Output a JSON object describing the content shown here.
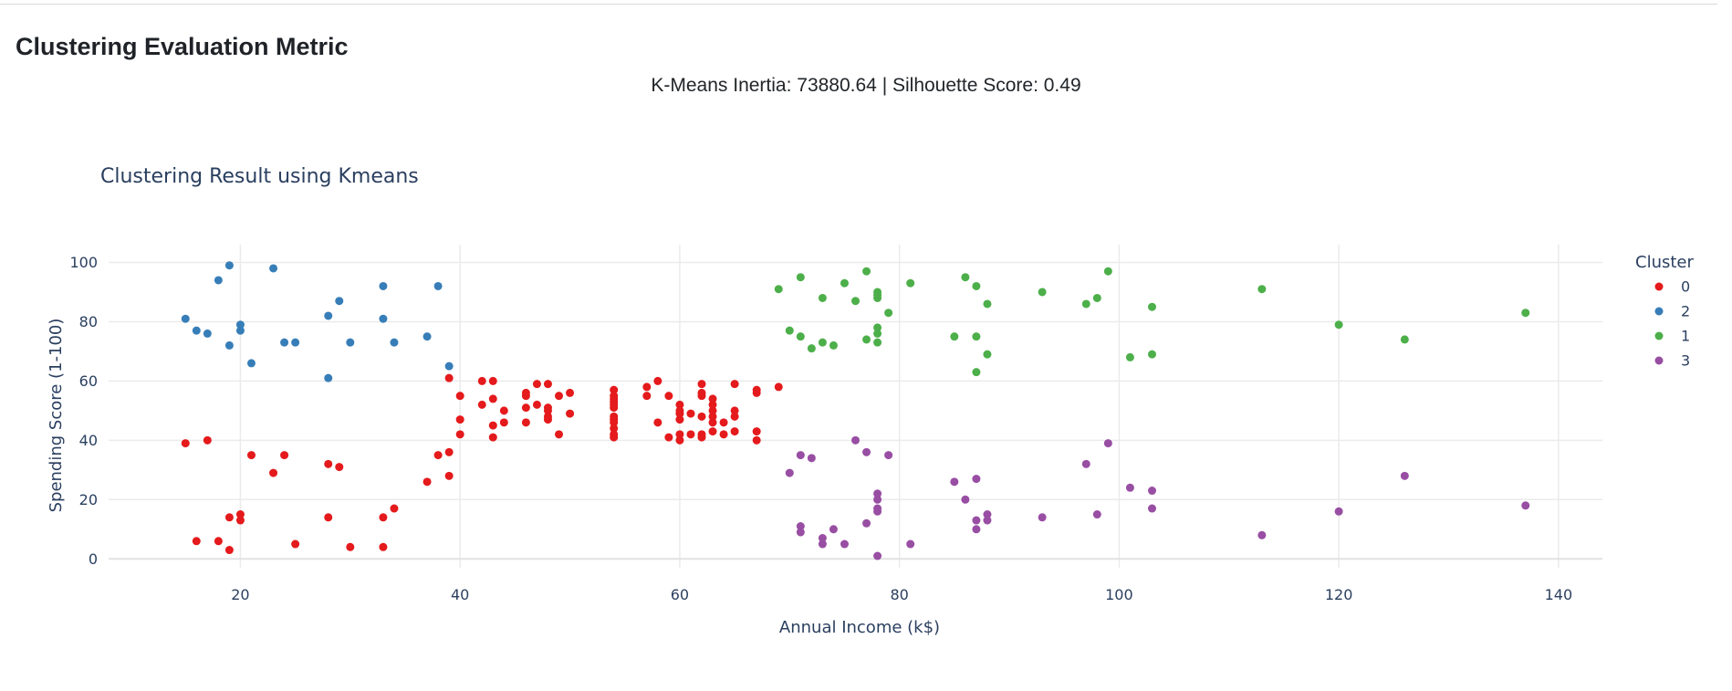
{
  "section": {
    "title": "Clustering Evaluation Metric",
    "metrics_text": "K-Means Inertia: 73880.64 | Silhouette Score: 0.49"
  },
  "chart_data": {
    "type": "scatter",
    "title": "Clustering Result using Kmeans",
    "xlabel": "Annual Income (k$)",
    "ylabel": "Spending Score (1-100)",
    "xlim": [
      8,
      144
    ],
    "ylim": [
      -3,
      106
    ],
    "x_ticks": [
      20,
      40,
      60,
      80,
      100,
      120,
      140
    ],
    "y_ticks": [
      0,
      20,
      40,
      60,
      80,
      100
    ],
    "grid": true,
    "legend": {
      "title": "Cluster",
      "position": "right"
    },
    "series": [
      {
        "name": "0",
        "color": "#e41a1c",
        "points": [
          [
            15,
            39
          ],
          [
            16,
            6
          ],
          [
            17,
            40
          ],
          [
            18,
            6
          ],
          [
            19,
            3
          ],
          [
            19,
            14
          ],
          [
            20,
            15
          ],
          [
            20,
            13
          ],
          [
            21,
            35
          ],
          [
            23,
            29
          ],
          [
            24,
            35
          ],
          [
            25,
            5
          ],
          [
            28,
            14
          ],
          [
            28,
            32
          ],
          [
            29,
            31
          ],
          [
            30,
            4
          ],
          [
            33,
            4
          ],
          [
            33,
            14
          ],
          [
            34,
            17
          ],
          [
            37,
            26
          ],
          [
            38,
            35
          ],
          [
            39,
            36
          ],
          [
            39,
            28
          ],
          [
            39,
            61
          ],
          [
            40,
            55
          ],
          [
            40,
            47
          ],
          [
            40,
            42
          ],
          [
            42,
            52
          ],
          [
            42,
            60
          ],
          [
            43,
            60
          ],
          [
            43,
            54
          ],
          [
            43,
            45
          ],
          [
            43,
            41
          ],
          [
            44,
            50
          ],
          [
            44,
            46
          ],
          [
            46,
            51
          ],
          [
            46,
            46
          ],
          [
            46,
            56
          ],
          [
            46,
            55
          ],
          [
            47,
            52
          ],
          [
            47,
            59
          ],
          [
            48,
            51
          ],
          [
            48,
            59
          ],
          [
            48,
            50
          ],
          [
            48,
            48
          ],
          [
            48,
            47
          ],
          [
            49,
            55
          ],
          [
            49,
            42
          ],
          [
            50,
            49
          ],
          [
            50,
            56
          ],
          [
            54,
            47
          ],
          [
            54,
            54
          ],
          [
            54,
            53
          ],
          [
            54,
            48
          ],
          [
            54,
            52
          ],
          [
            54,
            42
          ],
          [
            54,
            51
          ],
          [
            54,
            55
          ],
          [
            54,
            41
          ],
          [
            54,
            44
          ],
          [
            54,
            57
          ],
          [
            54,
            46
          ],
          [
            57,
            58
          ],
          [
            57,
            55
          ],
          [
            58,
            60
          ],
          [
            58,
            46
          ],
          [
            59,
            55
          ],
          [
            59,
            41
          ],
          [
            60,
            49
          ],
          [
            60,
            40
          ],
          [
            60,
            42
          ],
          [
            60,
            52
          ],
          [
            60,
            47
          ],
          [
            60,
            50
          ],
          [
            61,
            42
          ],
          [
            61,
            49
          ],
          [
            62,
            41
          ],
          [
            62,
            48
          ],
          [
            62,
            59
          ],
          [
            62,
            55
          ],
          [
            62,
            56
          ],
          [
            62,
            42
          ],
          [
            63,
            50
          ],
          [
            63,
            46
          ],
          [
            63,
            43
          ],
          [
            63,
            48
          ],
          [
            63,
            52
          ],
          [
            63,
            54
          ],
          [
            64,
            42
          ],
          [
            64,
            46
          ],
          [
            65,
            48
          ],
          [
            65,
            50
          ],
          [
            65,
            43
          ],
          [
            65,
            59
          ],
          [
            67,
            43
          ],
          [
            67,
            57
          ],
          [
            67,
            56
          ],
          [
            67,
            40
          ],
          [
            69,
            58
          ]
        ]
      },
      {
        "name": "2",
        "color": "#377eb8",
        "points": [
          [
            15,
            81
          ],
          [
            16,
            77
          ],
          [
            17,
            76
          ],
          [
            18,
            94
          ],
          [
            19,
            72
          ],
          [
            19,
            99
          ],
          [
            20,
            77
          ],
          [
            20,
            79
          ],
          [
            21,
            66
          ],
          [
            23,
            98
          ],
          [
            24,
            73
          ],
          [
            25,
            73
          ],
          [
            28,
            82
          ],
          [
            28,
            61
          ],
          [
            29,
            87
          ],
          [
            30,
            73
          ],
          [
            33,
            92
          ],
          [
            33,
            81
          ],
          [
            34,
            73
          ],
          [
            37,
            75
          ],
          [
            38,
            92
          ],
          [
            39,
            65
          ]
        ]
      },
      {
        "name": "1",
        "color": "#4daf4a",
        "points": [
          [
            69,
            91
          ],
          [
            70,
            77
          ],
          [
            71,
            95
          ],
          [
            71,
            75
          ],
          [
            72,
            71
          ],
          [
            73,
            88
          ],
          [
            73,
            73
          ],
          [
            74,
            72
          ],
          [
            75,
            93
          ],
          [
            76,
            87
          ],
          [
            77,
            97
          ],
          [
            77,
            74
          ],
          [
            78,
            90
          ],
          [
            78,
            88
          ],
          [
            78,
            89
          ],
          [
            78,
            78
          ],
          [
            78,
            73
          ],
          [
            78,
            76
          ],
          [
            79,
            83
          ],
          [
            81,
            93
          ],
          [
            85,
            75
          ],
          [
            86,
            95
          ],
          [
            87,
            63
          ],
          [
            87,
            75
          ],
          [
            87,
            92
          ],
          [
            88,
            86
          ],
          [
            88,
            69
          ],
          [
            93,
            90
          ],
          [
            97,
            86
          ],
          [
            98,
            88
          ],
          [
            99,
            97
          ],
          [
            101,
            68
          ],
          [
            103,
            85
          ],
          [
            103,
            69
          ],
          [
            113,
            91
          ],
          [
            120,
            79
          ],
          [
            126,
            74
          ],
          [
            137,
            83
          ]
        ]
      },
      {
        "name": "3",
        "color": "#984ea3",
        "points": [
          [
            70,
            29
          ],
          [
            71,
            11
          ],
          [
            71,
            9
          ],
          [
            71,
            35
          ],
          [
            72,
            34
          ],
          [
            73,
            5
          ],
          [
            73,
            7
          ],
          [
            74,
            10
          ],
          [
            75,
            5
          ],
          [
            76,
            40
          ],
          [
            77,
            12
          ],
          [
            77,
            36
          ],
          [
            78,
            22
          ],
          [
            78,
            17
          ],
          [
            78,
            20
          ],
          [
            78,
            16
          ],
          [
            78,
            1
          ],
          [
            79,
            35
          ],
          [
            81,
            5
          ],
          [
            85,
            26
          ],
          [
            86,
            20
          ],
          [
            87,
            27
          ],
          [
            87,
            13
          ],
          [
            87,
            10
          ],
          [
            88,
            13
          ],
          [
            88,
            15
          ],
          [
            93,
            14
          ],
          [
            97,
            32
          ],
          [
            98,
            15
          ],
          [
            99,
            39
          ],
          [
            101,
            24
          ],
          [
            103,
            17
          ],
          [
            103,
            23
          ],
          [
            113,
            8
          ],
          [
            120,
            16
          ],
          [
            126,
            28
          ],
          [
            137,
            18
          ]
        ]
      }
    ]
  }
}
